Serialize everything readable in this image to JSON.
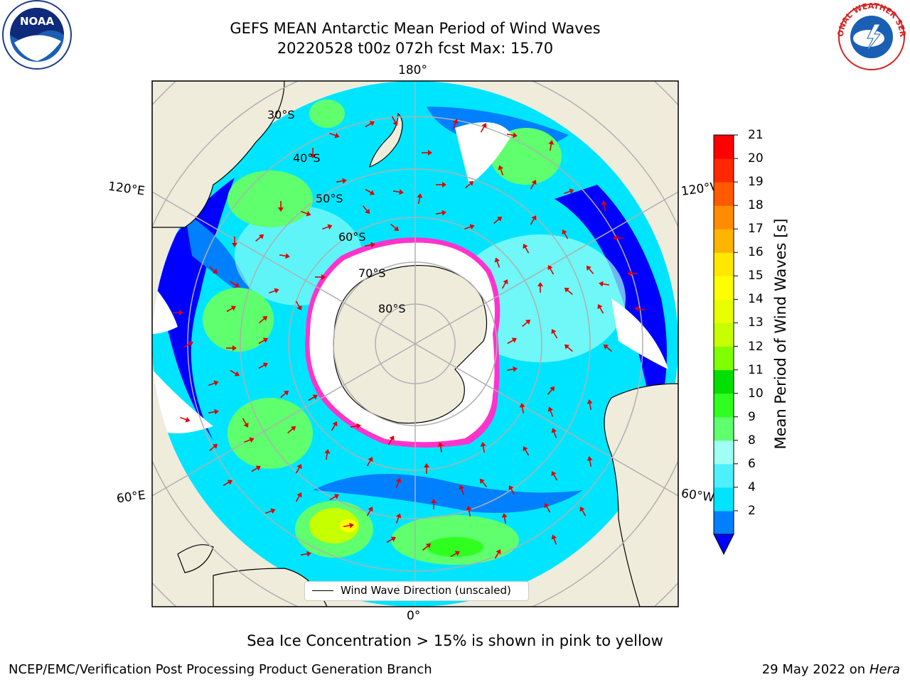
{
  "header": {
    "title_line1": "GEFS MEAN Antarctic Mean Period of Wind Waves",
    "title_line2": "20220528 t00z 072h fcst   Max: 15.70"
  },
  "logos": {
    "left": {
      "icon": "noaa-logo",
      "text": "NOAA"
    },
    "right": {
      "icon": "nws-logo",
      "text": "NATIONAL WEATHER SERVICE"
    }
  },
  "map": {
    "projection": "south-polar-stereographic",
    "longitude_labels": {
      "top": "180°",
      "bottom": "0°",
      "upper_left": "120°E",
      "lower_left": "60°E",
      "upper_right": "120°W",
      "lower_right": "60°W"
    },
    "latitude_labels": [
      "30°S",
      "40°S",
      "50°S",
      "60°S",
      "70°S",
      "80°S"
    ],
    "legend": "Wind Wave Direction (unscaled)",
    "sea_ice_note": "Sea Ice Concentration > 15% is shown in pink to yellow"
  },
  "colorbar": {
    "label": "Mean Period of Wind Waves [s]",
    "ticks": [
      "21",
      "20",
      "19",
      "18",
      "17",
      "16",
      "15",
      "14",
      "13",
      "12",
      "11",
      "10",
      "9",
      "8",
      "6",
      "4",
      "2"
    ],
    "colors": [
      "#0000ff",
      "#0080ff",
      "#00e5ff",
      "#4df0ff",
      "#9ffff4",
      "#5fff6e",
      "#2eff1f",
      "#00e000",
      "#7fff00",
      "#c6ff00",
      "#e8ff00",
      "#ffff00",
      "#ffe800",
      "#ffb400",
      "#ff8c00",
      "#ff5a00",
      "#ff2800",
      "#ff0000"
    ]
  },
  "footer": {
    "left": "NCEP/EMC/Verification Post Processing Product Generation Branch",
    "right_date": "29 May 2022 on",
    "right_machine": "Hera"
  }
}
